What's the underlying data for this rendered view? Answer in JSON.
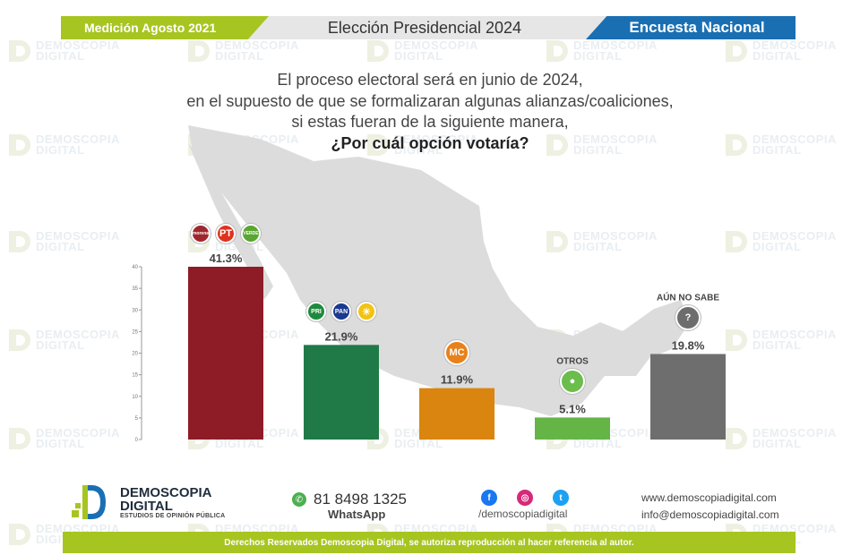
{
  "header": {
    "left_label": "Medición Agosto 2021",
    "center_title": "Elección Presidencial 2024",
    "right_label": "Encuesta Nacional"
  },
  "question": {
    "line1": "El proceso electoral será en junio de 2024,",
    "line2": "en el supuesto de que se formalizaran algunas alianzas/coaliciones,",
    "line3": "si estas fueran de la siguiente manera,",
    "line4": "¿Por cuál opción votaría?"
  },
  "watermark": {
    "line1": "DEMOSCOPIA",
    "line2": "DIGITAL"
  },
  "chart_data": {
    "type": "bar",
    "categories": [
      "MORENA / PT / VERDE",
      "PRI / PAN / PRD",
      "Movimiento Ciudadano",
      "OTROS",
      "AÚN NO SABE"
    ],
    "values": [
      41.3,
      21.9,
      11.9,
      5.1,
      19.8
    ],
    "value_labels": [
      "41.3%",
      "21.9%",
      "11.9%",
      "5.1%",
      "19.8%"
    ],
    "category_labels_shown": [
      "",
      "",
      "",
      "OTROS",
      "AÚN NO SABE"
    ],
    "ylim": [
      0,
      40
    ],
    "yticks": [
      0,
      5,
      10,
      15,
      20,
      25,
      30,
      35,
      40
    ],
    "colors": [
      "#8e1c26",
      "#1f7a47",
      "#d9850f",
      "#64b545",
      "#6e6e6e"
    ],
    "party_logos": [
      [
        {
          "name": "morena-logo",
          "text": "morena",
          "color": "#a0262e"
        },
        {
          "name": "pt-logo",
          "text": "PT",
          "color": "#e0331e"
        },
        {
          "name": "verde-logo",
          "text": "VERDE",
          "color": "#5aa632"
        }
      ],
      [
        {
          "name": "pri-logo",
          "text": "PRI",
          "color": "#1e8a3c"
        },
        {
          "name": "pan-logo",
          "text": "PAN",
          "color": "#1b3a8f"
        },
        {
          "name": "prd-logo",
          "text": "☀",
          "color": "#f2c313"
        }
      ],
      [
        {
          "name": "movimiento-ciudadano-logo",
          "text": "MC",
          "color": "#e8811b"
        }
      ],
      [
        {
          "name": "otros-person-icon",
          "text": "●",
          "color": "#6bbd4c"
        }
      ],
      [
        {
          "name": "aun-no-sabe-question-icon",
          "text": "?",
          "color": "#6d6d6d"
        }
      ]
    ]
  },
  "footer": {
    "brand_name_line1": "DEMOSCOPIA",
    "brand_name_line2": "DIGITAL",
    "brand_tagline": "ESTUDIOS DE OPINIÓN PÚBLICA",
    "phone": "81 8498 1325",
    "phone_label": "WhatsApp",
    "social_handle": "/demoscopiadigital",
    "website": "www.demoscopiadigital.com",
    "email": "info@demoscopiadigital.com",
    "rights": "Derechos Reservados Demoscopia Digital, se autoriza reproducción al hacer referencia al autor.",
    "social_icons": [
      {
        "name": "facebook-icon",
        "color": "#1877f2",
        "glyph": "f"
      },
      {
        "name": "instagram-icon",
        "color": "#d6297a",
        "glyph": "◎"
      },
      {
        "name": "twitter-icon",
        "color": "#1da1f2",
        "glyph": "t"
      }
    ]
  }
}
